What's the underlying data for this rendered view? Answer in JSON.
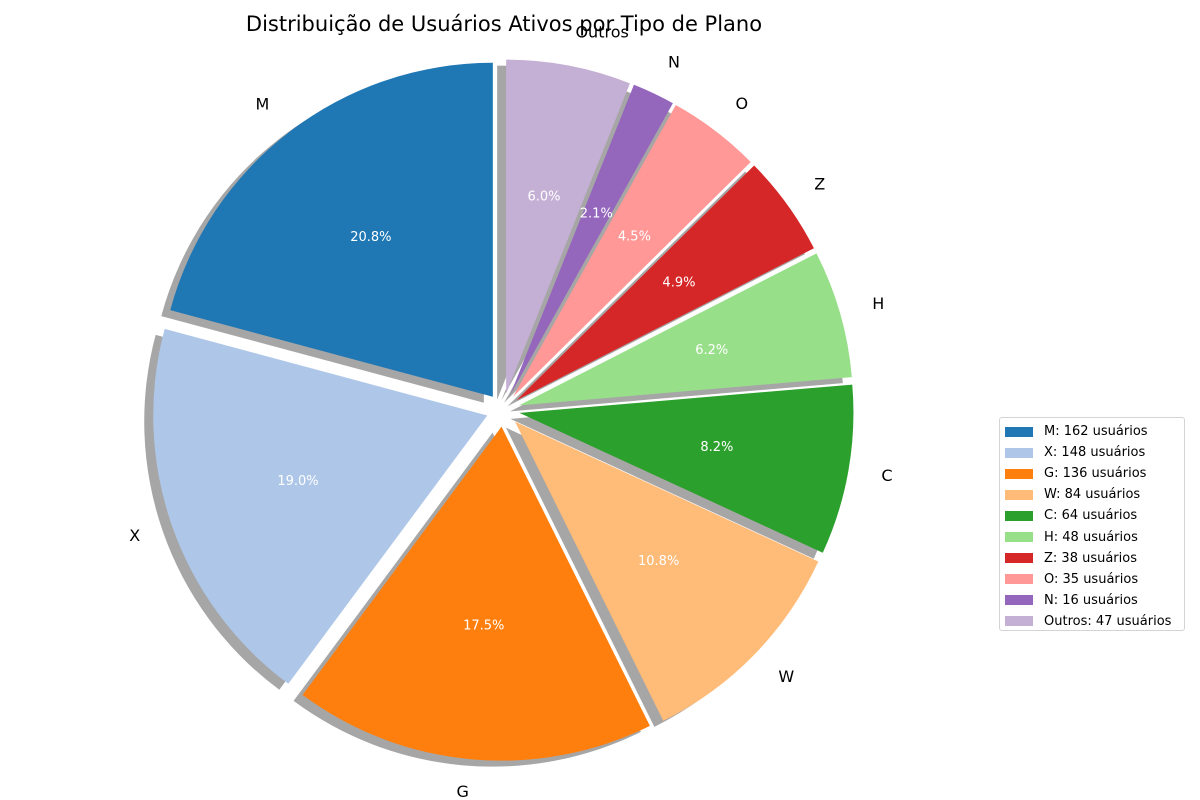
{
  "chart_data": {
    "type": "pie",
    "title": "Distribuição de Usuários Ativos por Tipo de Plano",
    "unit": "usuários",
    "slices": [
      {
        "label": "M",
        "value": 162,
        "pct_label": "20.8%",
        "legend": "M: 162 usuários",
        "color": "#1f77b4"
      },
      {
        "label": "X",
        "value": 148,
        "pct_label": "19.0%",
        "legend": "X: 148 usuários",
        "color": "#aec7e8"
      },
      {
        "label": "G",
        "value": 136,
        "pct_label": "17.5%",
        "legend": "G: 136 usuários",
        "color": "#ff7f0e"
      },
      {
        "label": "W",
        "value": 84,
        "pct_label": "10.8%",
        "legend": "W: 84 usuários",
        "color": "#ffbb78"
      },
      {
        "label": "C",
        "value": 64,
        "pct_label": "8.2%",
        "legend": "C: 64 usuários",
        "color": "#2ca02c"
      },
      {
        "label": "H",
        "value": 48,
        "pct_label": "6.2%",
        "legend": "H: 48 usuários",
        "color": "#98df8a"
      },
      {
        "label": "Z",
        "value": 38,
        "pct_label": "4.9%",
        "legend": "Z: 38 usuários",
        "color": "#d62728"
      },
      {
        "label": "O",
        "value": 35,
        "pct_label": "4.5%",
        "legend": "O: 35 usuários",
        "color": "#ff9896"
      },
      {
        "label": "N",
        "value": 16,
        "pct_label": "2.1%",
        "legend": "N: 16 usuários",
        "color": "#9467bd"
      },
      {
        "label": "Outros",
        "value": 47,
        "pct_label": "6.0%",
        "legend": "Outros: 47 usuários",
        "color": "#c5b0d5"
      }
    ],
    "start_angle_deg": 90,
    "direction": "counterclockwise",
    "shadow": true,
    "legend_placement": "center-right"
  }
}
